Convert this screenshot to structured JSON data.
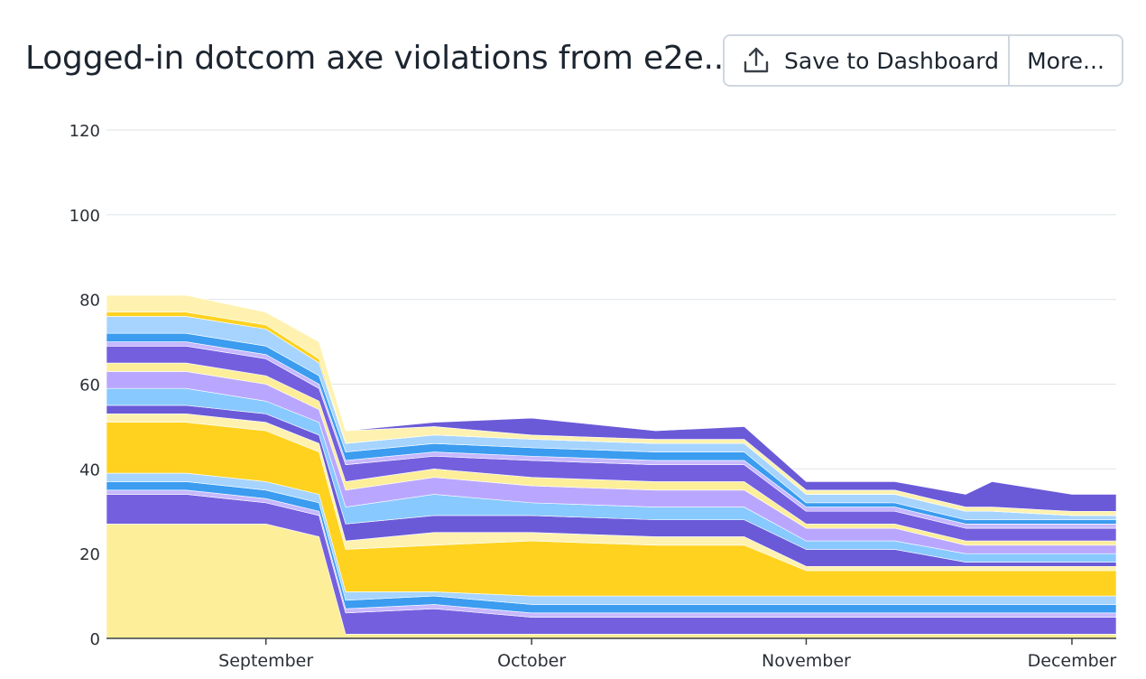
{
  "header": {
    "title": "Logged-in dotcom axe violations from e2e...",
    "save_label": "Save to Dashboard",
    "more_label": "More..."
  },
  "icons": {
    "save": "upload-icon"
  },
  "colors": {
    "grid": "#e3e7eb",
    "axis": "#3a4048",
    "palette": [
      "#fdee99",
      "#7460de",
      "#c7b8ff",
      "#3b9cf0",
      "#a6d4ff",
      "#ffd21f",
      "#fff2b0",
      "#6a5ad8",
      "#88c9ff",
      "#b9a7ff"
    ]
  },
  "chart_data": {
    "type": "area",
    "stacked": true,
    "title": "Logged-in dotcom axe violations from e2e...",
    "xlabel": "",
    "ylabel": "",
    "ylim": [
      0,
      120
    ],
    "yticks": [
      0,
      20,
      40,
      60,
      80,
      100,
      120
    ],
    "xticks": [
      {
        "label": "September",
        "day": 21
      },
      {
        "label": "October",
        "day": 51
      },
      {
        "label": "November",
        "day": 82
      },
      {
        "label": "December",
        "day": 112
      }
    ],
    "x_range_days": [
      3,
      117
    ],
    "x": [
      3,
      12,
      21,
      27,
      30,
      40,
      51,
      65,
      75,
      82,
      92,
      100,
      103,
      112,
      117
    ],
    "grid": true,
    "legend": "none",
    "series": [
      {
        "values": [
          27,
          27,
          27,
          24,
          1,
          1,
          1,
          1,
          1,
          1,
          1,
          1,
          1,
          1,
          1
        ]
      },
      {
        "values": [
          7,
          7,
          5,
          5,
          5,
          6,
          4,
          4,
          4,
          4,
          4,
          4,
          4,
          4,
          4
        ]
      },
      {
        "values": [
          1,
          1,
          1,
          1,
          1,
          1,
          1,
          1,
          1,
          1,
          1,
          1,
          1,
          1,
          1
        ]
      },
      {
        "values": [
          2,
          2,
          2,
          2,
          2,
          2,
          2,
          2,
          2,
          2,
          2,
          2,
          2,
          2,
          2
        ]
      },
      {
        "values": [
          2,
          2,
          2,
          2,
          2,
          1,
          2,
          2,
          2,
          2,
          2,
          2,
          2,
          2,
          2
        ]
      },
      {
        "values": [
          12,
          12,
          12,
          10,
          10,
          11,
          13,
          12,
          12,
          6,
          6,
          6,
          6,
          6,
          6
        ]
      },
      {
        "values": [
          2,
          2,
          2,
          2,
          2,
          3,
          2,
          2,
          2,
          1,
          1,
          1,
          1,
          1,
          1
        ]
      },
      {
        "values": [
          2,
          2,
          2,
          2,
          4,
          4,
          4,
          4,
          4,
          4,
          4,
          1,
          1,
          1,
          1
        ]
      },
      {
        "values": [
          4,
          4,
          3,
          3,
          4,
          5,
          3,
          3,
          3,
          2,
          2,
          2,
          2,
          2,
          2
        ]
      },
      {
        "values": [
          4,
          4,
          4,
          3,
          4,
          4,
          4,
          4,
          4,
          3,
          3,
          2,
          2,
          2,
          2
        ]
      },
      {
        "values": [
          2,
          2,
          2,
          2,
          2,
          2,
          2,
          2,
          2,
          1,
          1,
          1,
          1,
          1,
          1
        ]
      },
      {
        "values": [
          4,
          4,
          4,
          3,
          4,
          3,
          4,
          4,
          4,
          3,
          3,
          3,
          3,
          3,
          3
        ]
      },
      {
        "values": [
          1,
          1,
          1,
          1,
          1,
          1,
          1,
          1,
          1,
          1,
          1,
          1,
          1,
          1,
          1
        ]
      },
      {
        "values": [
          2,
          2,
          2,
          2,
          2,
          2,
          2,
          2,
          2,
          1,
          1,
          1,
          1,
          1,
          1
        ]
      },
      {
        "values": [
          4,
          4,
          4,
          3,
          2,
          2,
          2,
          2,
          2,
          2,
          2,
          2,
          2,
          1,
          1
        ]
      },
      {
        "values": [
          1,
          1,
          1,
          1,
          0,
          0,
          0,
          0,
          0,
          0,
          0,
          0,
          0,
          0,
          0
        ]
      },
      {
        "values": [
          4,
          4,
          3,
          4,
          3,
          2,
          1,
          1,
          1,
          1,
          1,
          1,
          1,
          1,
          1
        ]
      },
      {
        "values": [
          0,
          0,
          0,
          0,
          0,
          1,
          4,
          2,
          3,
          2,
          2,
          3,
          6,
          4,
          4
        ]
      }
    ]
  }
}
